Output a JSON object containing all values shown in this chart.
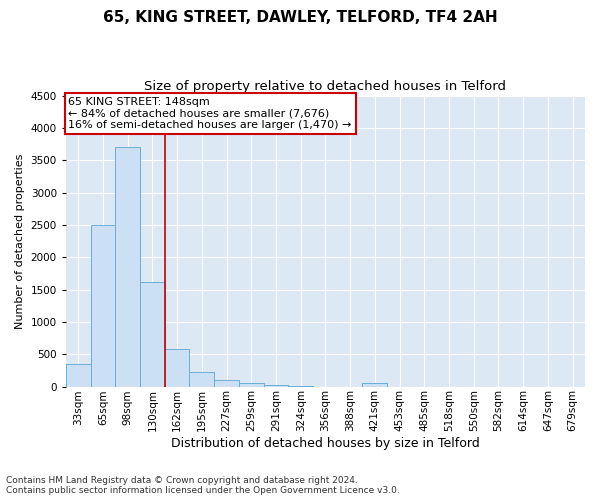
{
  "title": "65, KING STREET, DAWLEY, TELFORD, TF4 2AH",
  "subtitle": "Size of property relative to detached houses in Telford",
  "xlabel": "Distribution of detached houses by size in Telford",
  "ylabel": "Number of detached properties",
  "categories": [
    "33sqm",
    "65sqm",
    "98sqm",
    "130sqm",
    "162sqm",
    "195sqm",
    "227sqm",
    "259sqm",
    "291sqm",
    "324sqm",
    "356sqm",
    "388sqm",
    "421sqm",
    "453sqm",
    "485sqm",
    "518sqm",
    "550sqm",
    "582sqm",
    "614sqm",
    "647sqm",
    "679sqm"
  ],
  "values": [
    350,
    2500,
    3700,
    1620,
    580,
    220,
    100,
    55,
    20,
    5,
    0,
    0,
    50,
    0,
    0,
    0,
    0,
    0,
    0,
    0,
    0
  ],
  "bar_color": "#cce0f5",
  "bar_edge_color": "#6baed6",
  "vline_color": "#cc0000",
  "vline_x": 3.5,
  "annotation_text": "65 KING STREET: 148sqm\n← 84% of detached houses are smaller (7,676)\n16% of semi-detached houses are larger (1,470) →",
  "annotation_box_facecolor": "#ffffff",
  "annotation_box_edgecolor": "#cc0000",
  "ylim": [
    0,
    4500
  ],
  "yticks": [
    0,
    500,
    1000,
    1500,
    2000,
    2500,
    3000,
    3500,
    4000,
    4500
  ],
  "figure_facecolor": "#ffffff",
  "axes_facecolor": "#dde8f5",
  "footnote": "Contains HM Land Registry data © Crown copyright and database right 2024.\nContains public sector information licensed under the Open Government Licence v3.0.",
  "title_fontsize": 11,
  "subtitle_fontsize": 9.5,
  "xlabel_fontsize": 9,
  "ylabel_fontsize": 8,
  "tick_fontsize": 7.5,
  "annot_fontsize": 8
}
